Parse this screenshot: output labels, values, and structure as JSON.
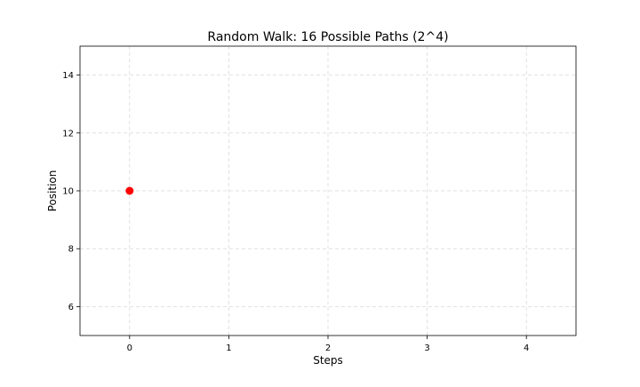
{
  "chart_data": {
    "type": "scatter",
    "title": "Random Walk: 16 Possible Paths (2^4)",
    "xlabel": "Steps",
    "ylabel": "Position",
    "xlim": [
      -0.5,
      4.5
    ],
    "ylim": [
      5,
      15
    ],
    "xticks": [
      0,
      1,
      2,
      3,
      4
    ],
    "yticks": [
      6,
      8,
      10,
      12,
      14
    ],
    "grid": true,
    "points": [
      {
        "x": 0,
        "y": 10
      }
    ],
    "point_color": "#ff0000",
    "grid_color": "#d9d9d9"
  }
}
